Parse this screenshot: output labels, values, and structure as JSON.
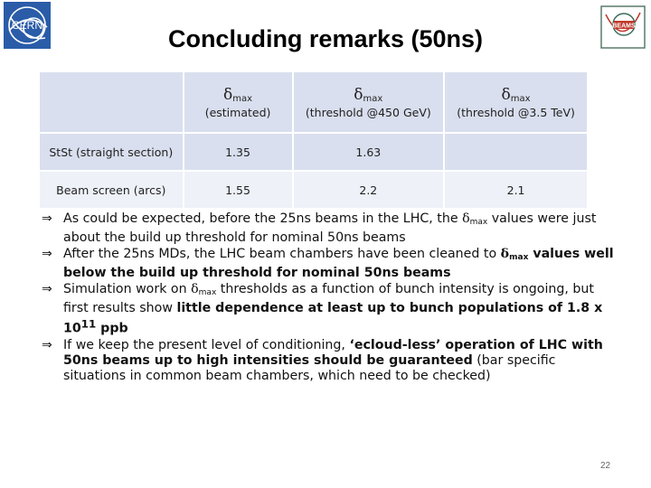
{
  "title": "Concluding remarks (50ns)",
  "logos": {
    "left": "CERN",
    "right": "BEAMS"
  },
  "table": {
    "headers": [
      {
        "symbol": "δ",
        "sub": "max",
        "note": "(estimated)"
      },
      {
        "symbol": "δ",
        "sub": "max",
        "note": "(threshold @450 GeV)"
      },
      {
        "symbol": "δ",
        "sub": "max",
        "note": "(threshold @3.5 TeV)"
      }
    ],
    "rows": [
      {
        "label": "StSt (straight section)",
        "values": [
          "1.35",
          "1.63",
          ""
        ]
      },
      {
        "label": "Beam screen (arcs)",
        "values": [
          "1.55",
          "2.2",
          "2.1"
        ]
      }
    ]
  },
  "bullets": {
    "arrow": "⇒",
    "delta": "δ",
    "max": "max",
    "b1": {
      "pre": "As could be expected, before the 25ns beams in the LHC, the ",
      "post": " values were just about the build up threshold for nominal 50ns beams"
    },
    "b2": {
      "pre": "After the 25ns MDs, the LHC beam chambers have been cleaned to ",
      "bold": " values well below the build up threshold for nominal 50ns beams"
    },
    "b3": {
      "pre": "Simulation work on ",
      "mid": " thresholds as a function of bunch intensity is ongoing, but first results show ",
      "bold": "little dependence at least up to bunch populations of 1.8 x 10",
      "sup": "11",
      "bold_end": " ppb"
    },
    "b4": {
      "pre": "If we keep the present level of conditioning, ",
      "bold": "‘ecloud-less’ operation of LHC with 50ns beams up to high intensities should be guaranteed",
      "post": " (bar specific situations in common beam chambers, which need to be checked)"
    }
  },
  "page_number": "22",
  "colors": {
    "table_header": "#d9dfee",
    "table_row_alt": "#eef1f8",
    "cern_blue": "#1f4fa0",
    "beams_red": "#c0392b"
  }
}
